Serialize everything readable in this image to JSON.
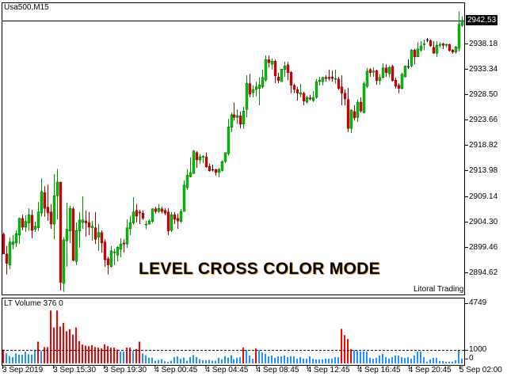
{
  "window": {
    "symbol_title": "Usa500,M15"
  },
  "overlay": {
    "headline": "LEVEL CROSS COLOR MODE",
    "brand": "Litoral Trading"
  },
  "indicator": {
    "title": "LT Volume 376 0",
    "level_label": "1000"
  },
  "colors": {
    "bull": "#00c800",
    "bear": "#e00000",
    "doji": "#000000",
    "volume_above": "#ff0000",
    "volume_below": "#1e90ff",
    "wick_bull": "#009000",
    "wick_bear": "#a00000"
  },
  "chart_data": [
    {
      "type": "candlestick",
      "current_price": "2942.53",
      "y_ticks": [
        "2938.18",
        "2933.34",
        "2928.50",
        "2923.66",
        "2918.82",
        "2913.98",
        "2909.14",
        "2904.30",
        "2899.46",
        "2894.62"
      ],
      "x_ticks": [
        "3 Sep 2019",
        "3 Sep 15:30",
        "3 Sep 19:30",
        "4 Sep 00:45",
        "4 Sep 04:45",
        "4 Sep 08:45",
        "4 Sep 12:45",
        "4 Sep 16:45",
        "4 Sep 20:45",
        "5 Sep 02:00"
      ],
      "grid": false,
      "ohlc_fields": [
        "open",
        "high",
        "low",
        "close"
      ],
      "ohlc": [
        [
          2901.9,
          2902.2,
          2898.1,
          2898.1
        ],
        [
          2898.1,
          2899.6,
          2894.2,
          2896.3
        ],
        [
          2896.0,
          2901.3,
          2895.2,
          2900.4
        ],
        [
          2899.9,
          2901.7,
          2899.0,
          2900.4
        ],
        [
          2900.2,
          2902.6,
          2899.4,
          2902.0
        ],
        [
          2901.7,
          2905.0,
          2900.0,
          2904.9
        ],
        [
          2904.9,
          2905.6,
          2902.6,
          2903.2
        ],
        [
          2903.2,
          2905.5,
          2902.3,
          2904.3
        ],
        [
          2904.0,
          2906.8,
          2902.5,
          2905.6
        ],
        [
          2905.5,
          2906.5,
          2901.1,
          2902.6
        ],
        [
          2902.8,
          2904.3,
          2902.3,
          2903.4
        ],
        [
          2903.1,
          2908.0,
          2902.5,
          2906.1
        ],
        [
          2905.9,
          2912.5,
          2905.3,
          2910.0
        ],
        [
          2909.8,
          2911.0,
          2905.2,
          2906.8
        ],
        [
          2907.0,
          2911.3,
          2904.4,
          2905.9
        ],
        [
          2906.1,
          2907.6,
          2902.9,
          2903.8
        ],
        [
          2903.8,
          2913.3,
          2900.9,
          2909.2
        ],
        [
          2909.2,
          2914.3,
          2904.7,
          2911.8
        ],
        [
          2911.8,
          2911.8,
          2891.2,
          2892.7
        ],
        [
          2892.5,
          2901.3,
          2890.9,
          2900.8
        ],
        [
          2900.6,
          2907.9,
          2895.7,
          2902.8
        ],
        [
          2902.5,
          2907.3,
          2900.2,
          2906.8
        ],
        [
          2906.7,
          2907.1,
          2896.7,
          2896.9
        ],
        [
          2896.7,
          2904.1,
          2896.0,
          2902.6
        ],
        [
          2902.5,
          2906.1,
          2899.3,
          2904.6
        ],
        [
          2904.1,
          2909.1,
          2902.9,
          2904.6
        ],
        [
          2904.4,
          2906.4,
          2901.4,
          2904.0
        ],
        [
          2904.1,
          2906.1,
          2901.7,
          2903.2
        ],
        [
          2903.1,
          2904.4,
          2900.6,
          2903.4
        ],
        [
          2903.1,
          2906.1,
          2900.0,
          2900.9
        ],
        [
          2901.3,
          2903.8,
          2898.7,
          2902.2
        ],
        [
          2902.2,
          2902.6,
          2898.4,
          2900.2
        ],
        [
          2900.4,
          2900.9,
          2895.7,
          2897.0
        ],
        [
          2897.2,
          2897.6,
          2894.2,
          2896.0
        ],
        [
          2895.7,
          2899.6,
          2895.5,
          2898.7
        ],
        [
          2898.4,
          2899.1,
          2896.0,
          2898.5
        ],
        [
          2897.9,
          2899.6,
          2896.7,
          2899.4
        ],
        [
          2899.0,
          2901.1,
          2897.5,
          2900.0
        ],
        [
          2900.2,
          2900.9,
          2898.4,
          2900.0
        ],
        [
          2900.0,
          2904.7,
          2899.3,
          2903.1
        ],
        [
          2902.9,
          2905.3,
          2901.7,
          2904.1
        ],
        [
          2904.0,
          2908.9,
          2903.7,
          2906.1
        ],
        [
          2906.4,
          2907.6,
          2904.1,
          2905.3
        ],
        [
          2906.1,
          2906.5,
          2903.8,
          2905.9
        ],
        [
          2905.9,
          2906.4,
          2904.6,
          2904.9
        ],
        [
          2903.7,
          2904.4,
          2902.8,
          2903.8
        ],
        [
          2903.8,
          2904.7,
          2903.7,
          2904.4
        ],
        [
          2904.3,
          2906.8,
          2904.0,
          2906.7
        ],
        [
          2906.7,
          2907.1,
          2905.8,
          2906.2
        ],
        [
          2906.2,
          2907.6,
          2905.9,
          2906.8
        ],
        [
          2906.7,
          2907.1,
          2905.8,
          2906.2
        ],
        [
          2906.4,
          2906.8,
          2905.5,
          2905.9
        ],
        [
          2906.1,
          2906.8,
          2901.7,
          2902.5
        ],
        [
          2902.6,
          2906.1,
          2902.3,
          2905.6
        ],
        [
          2905.6,
          2906.1,
          2903.8,
          2904.7
        ],
        [
          2904.9,
          2905.8,
          2902.9,
          2904.4
        ],
        [
          2904.3,
          2906.7,
          2904.0,
          2906.2
        ],
        [
          2906.2,
          2912.1,
          2906.2,
          2911.2
        ],
        [
          2910.7,
          2914.3,
          2910.3,
          2913.1
        ],
        [
          2912.8,
          2916.5,
          2912.7,
          2913.6
        ],
        [
          2913.4,
          2917.9,
          2913.4,
          2917.7
        ],
        [
          2917.4,
          2917.7,
          2914.5,
          2916.0
        ],
        [
          2916.0,
          2917.1,
          2915.3,
          2916.6
        ],
        [
          2916.6,
          2916.9,
          2915.4,
          2916.7
        ],
        [
          2916.6,
          2917.4,
          2914.5,
          2914.7
        ],
        [
          2914.8,
          2915.3,
          2913.8,
          2913.9
        ],
        [
          2914.2,
          2915.1,
          2913.8,
          2914.2
        ],
        [
          2914.2,
          2914.3,
          2913.0,
          2913.6
        ],
        [
          2913.6,
          2914.5,
          2912.7,
          2914.2
        ],
        [
          2914.0,
          2915.9,
          2913.8,
          2915.7
        ],
        [
          2915.7,
          2917.4,
          2915.4,
          2917.4
        ],
        [
          2917.2,
          2923.8,
          2916.8,
          2922.3
        ],
        [
          2922.2,
          2925.0,
          2921.3,
          2924.6
        ],
        [
          2924.6,
          2926.9,
          2923.5,
          2924.1
        ],
        [
          2924.1,
          2925.6,
          2922.9,
          2924.4
        ],
        [
          2924.4,
          2925.2,
          2922.0,
          2922.8
        ],
        [
          2922.8,
          2926.1,
          2921.9,
          2925.3
        ],
        [
          2925.6,
          2932.1,
          2924.1,
          2930.6
        ],
        [
          2930.5,
          2932.4,
          2927.9,
          2928.5
        ],
        [
          2928.8,
          2930.2,
          2927.9,
          2929.4
        ],
        [
          2929.4,
          2930.9,
          2928.1,
          2929.9
        ],
        [
          2929.6,
          2931.7,
          2926.4,
          2930.3
        ],
        [
          2929.9,
          2933.2,
          2929.6,
          2931.7
        ],
        [
          2931.2,
          2935.9,
          2930.9,
          2935.1
        ],
        [
          2935.1,
          2935.9,
          2933.6,
          2934.5
        ],
        [
          2934.2,
          2935.3,
          2933.2,
          2934.8
        ],
        [
          2934.8,
          2935.1,
          2930.6,
          2932.0
        ],
        [
          2931.8,
          2932.6,
          2930.6,
          2931.1
        ],
        [
          2930.9,
          2933.3,
          2930.9,
          2933.3
        ],
        [
          2933.2,
          2934.7,
          2931.8,
          2933.9
        ],
        [
          2934.1,
          2934.7,
          2931.2,
          2932.6
        ],
        [
          2932.7,
          2932.9,
          2928.7,
          2930.2
        ],
        [
          2930.2,
          2930.5,
          2928.7,
          2929.4
        ],
        [
          2929.4,
          2929.9,
          2927.3,
          2928.7
        ],
        [
          2928.5,
          2930.5,
          2927.9,
          2928.8
        ],
        [
          2928.7,
          2929.0,
          2926.4,
          2927.2
        ],
        [
          2927.0,
          2928.2,
          2926.7,
          2927.9
        ],
        [
          2927.8,
          2928.4,
          2927.3,
          2927.6
        ],
        [
          2927.3,
          2929.1,
          2927.0,
          2927.9
        ],
        [
          2927.9,
          2931.4,
          2927.6,
          2930.9
        ],
        [
          2930.9,
          2931.8,
          2930.2,
          2931.2
        ],
        [
          2930.9,
          2931.8,
          2930.2,
          2931.7
        ],
        [
          2931.7,
          2932.1,
          2930.9,
          2931.5
        ],
        [
          2931.7,
          2933.2,
          2931.1,
          2931.5
        ],
        [
          2931.8,
          2933.0,
          2930.9,
          2931.5
        ],
        [
          2931.4,
          2933.2,
          2930.5,
          2931.5
        ],
        [
          2931.4,
          2931.8,
          2929.3,
          2929.6
        ],
        [
          2929.9,
          2932.1,
          2926.4,
          2928.7
        ],
        [
          2928.7,
          2929.4,
          2926.4,
          2927.6
        ],
        [
          2927.5,
          2929.7,
          2921.3,
          2922.0
        ],
        [
          2922.0,
          2925.6,
          2921.1,
          2925.5
        ],
        [
          2925.2,
          2926.4,
          2923.5,
          2924.0
        ],
        [
          2924.1,
          2927.5,
          2923.2,
          2927.0
        ],
        [
          2927.0,
          2927.9,
          2925.0,
          2925.3
        ],
        [
          2925.0,
          2930.9,
          2924.9,
          2930.5
        ],
        [
          2930.0,
          2933.5,
          2929.7,
          2932.9
        ],
        [
          2933.2,
          2933.5,
          2931.8,
          2932.6
        ],
        [
          2932.7,
          2933.6,
          2931.8,
          2932.9
        ],
        [
          2933.0,
          2933.2,
          2930.3,
          2931.1
        ],
        [
          2931.1,
          2932.3,
          2930.3,
          2931.7
        ],
        [
          2931.7,
          2934.4,
          2931.5,
          2933.5
        ],
        [
          2933.5,
          2934.2,
          2931.8,
          2932.6
        ],
        [
          2932.4,
          2933.9,
          2931.7,
          2933.6
        ],
        [
          2933.8,
          2934.1,
          2930.9,
          2931.1
        ],
        [
          2931.2,
          2931.7,
          2929.6,
          2930.0
        ],
        [
          2930.2,
          2930.6,
          2928.7,
          2929.6
        ],
        [
          2929.6,
          2932.6,
          2929.4,
          2932.3
        ],
        [
          2931.8,
          2933.9,
          2931.7,
          2933.9
        ],
        [
          2933.8,
          2935.1,
          2933.3,
          2933.8
        ],
        [
          2933.9,
          2937.1,
          2933.6,
          2936.9
        ],
        [
          2936.9,
          2937.1,
          2934.2,
          2935.6
        ],
        [
          2935.6,
          2938.4,
          2935.6,
          2937.1
        ],
        [
          2936.9,
          2938.6,
          2936.6,
          2937.7
        ],
        [
          2938.0,
          2938.9,
          2936.9,
          2938.1
        ],
        [
          2938.9,
          2939.2,
          2938.4,
          2938.9
        ],
        [
          2938.7,
          2938.9,
          2937.5,
          2937.7
        ],
        [
          2937.4,
          2938.6,
          2936.2,
          2936.3
        ],
        [
          2936.3,
          2938.6,
          2935.6,
          2937.8
        ],
        [
          2937.8,
          2938.4,
          2937.4,
          2938.0
        ],
        [
          2938.1,
          2938.3,
          2937.1,
          2937.8
        ],
        [
          2937.8,
          2938.1,
          2937.4,
          2938.0
        ],
        [
          2938.0,
          2938.1,
          2936.6,
          2936.8
        ],
        [
          2936.9,
          2937.1,
          2936.2,
          2936.5
        ],
        [
          2936.5,
          2937.7,
          2936.2,
          2937.5
        ],
        [
          2937.2,
          2944.2,
          2936.6,
          2941.8
        ],
        [
          2941.6,
          2943.3,
          2941.3,
          2942.53
        ]
      ]
    },
    {
      "type": "bar",
      "title": "LT Volume 376 0",
      "y_ticks": [
        "4749",
        "1000",
        "0"
      ],
      "ylim": [
        0,
        4749
      ],
      "level": 1000,
      "values": [
        1030,
        750,
        550,
        470,
        750,
        650,
        650,
        880,
        690,
        650,
        940,
        1630,
        940,
        1220,
        1220,
        3960,
        2690,
        3960,
        2760,
        3040,
        2410,
        2570,
        2160,
        2690,
        1670,
        1410,
        1330,
        1290,
        1370,
        1220,
        1180,
        1120,
        1430,
        1290,
        1180,
        1180,
        1030,
        880,
        880,
        1180,
        1180,
        940,
        1080,
        1630,
        750,
        610,
        430,
        430,
        200,
        250,
        310,
        160,
        100,
        200,
        470,
        530,
        350,
        430,
        200,
        470,
        610,
        470,
        310,
        240,
        240,
        270,
        200,
        200,
        430,
        310,
        550,
        430,
        610,
        310,
        430,
        470,
        1180,
        980,
        590,
        350,
        1120,
        980,
        820,
        710,
        530,
        590,
        430,
        530,
        530,
        590,
        470,
        530,
        530,
        350,
        470,
        350,
        350,
        530,
        350,
        300,
        300,
        300,
        350,
        350,
        350,
        470,
        470,
        2590,
        2120,
        1820,
        1060,
        980,
        940,
        880,
        880,
        880,
        410,
        350,
        410,
        590,
        710,
        470,
        350,
        470,
        590,
        590,
        470,
        410,
        470,
        350,
        590,
        880,
        880,
        470,
        120,
        300,
        410,
        410,
        180,
        180,
        120,
        120,
        120,
        240,
        980,
        350
      ]
    }
  ]
}
